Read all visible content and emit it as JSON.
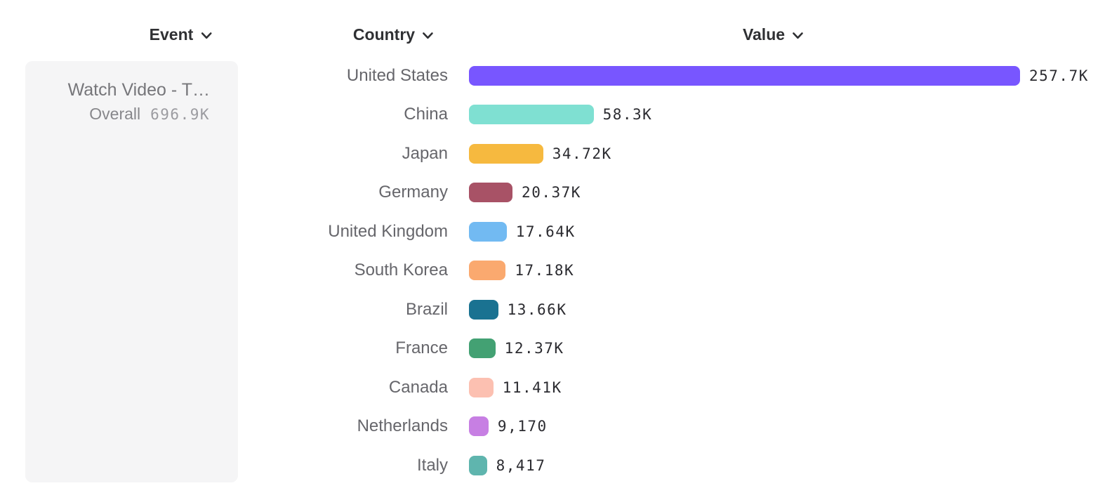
{
  "headers": {
    "event": "Event",
    "country": "Country",
    "value": "Value"
  },
  "event_card": {
    "title": "Watch Video - T…",
    "overall_label": "Overall",
    "overall_value": "696.9K"
  },
  "chart_data": {
    "type": "bar",
    "orientation": "horizontal",
    "title": "",
    "xlabel": "Value",
    "ylabel": "Country",
    "xlim": [
      0,
      257700
    ],
    "grid": false,
    "legend": "none",
    "categories": [
      "United States",
      "China",
      "Japan",
      "Germany",
      "United Kingdom",
      "South Korea",
      "Brazil",
      "France",
      "Canada",
      "Netherlands",
      "Italy"
    ],
    "values": [
      257700,
      58300,
      34720,
      20370,
      17640,
      17180,
      13660,
      12370,
      11410,
      9170,
      8417
    ],
    "value_labels": [
      "257.7K",
      "58.3K",
      "34.72K",
      "20.37K",
      "17.64K",
      "17.18K",
      "13.66K",
      "12.37K",
      "11.41K",
      "9,170",
      "8,417"
    ],
    "bar_colors": [
      "#7856ff",
      "#7fe0d2",
      "#f6b93f",
      "#a85266",
      "#72baf2",
      "#faa96f",
      "#1a7291",
      "#43a173",
      "#fcc0b1",
      "#c77fe3",
      "#5fb5ae"
    ]
  },
  "colors": {
    "header_text": "#2f3033",
    "country_label": "#66666b",
    "value_text": "#2b2b30",
    "card_bg": "#f5f5f6",
    "card_title": "#76767a",
    "card_overall": "#87878b",
    "card_overall_value": "#9b9ba0"
  }
}
